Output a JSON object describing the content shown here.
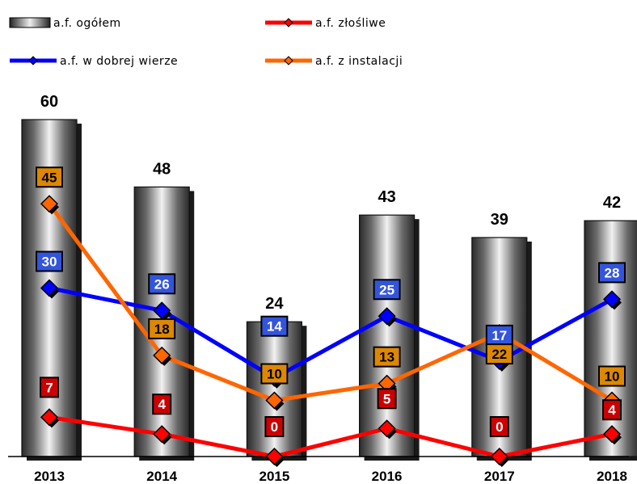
{
  "chart_data": {
    "type": "bar",
    "categories": [
      "2013",
      "2014",
      "2015",
      "2016",
      "2017",
      "2018"
    ],
    "series": [
      {
        "name": "a.f. ogółem",
        "kind": "bar",
        "values": [
          60,
          48,
          24,
          43,
          39,
          42
        ],
        "color": "#8c8c8c"
      },
      {
        "name": "a.f. złośliwe",
        "kind": "line",
        "values": [
          7,
          4,
          0,
          5,
          0,
          4
        ],
        "color": "#ff0000",
        "label_bg": "#cc0000"
      },
      {
        "name": "a.f. w dobrej wierze",
        "kind": "line",
        "values": [
          30,
          26,
          14,
          25,
          17,
          28
        ],
        "color": "#0000ff",
        "label_bg": "#3355dd"
      },
      {
        "name": "a.f. z instalacji",
        "kind": "line",
        "values": [
          45,
          18,
          10,
          13,
          22,
          10
        ],
        "color": "#ff6600",
        "label_bg": "#dd8800"
      }
    ],
    "ylim": [
      0,
      65
    ],
    "legend": "top",
    "grid": false,
    "title": "",
    "xlabel": "",
    "ylabel": ""
  }
}
